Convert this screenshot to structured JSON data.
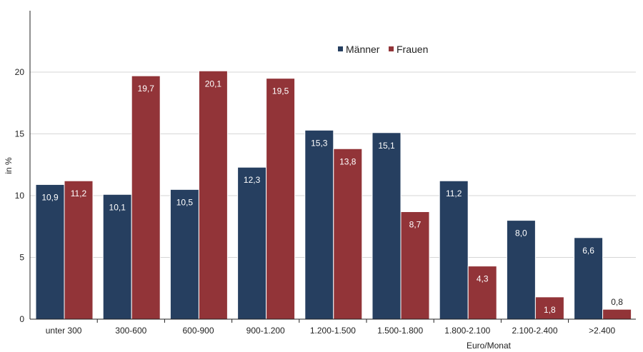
{
  "chart_data": {
    "type": "bar",
    "categories": [
      "unter 300",
      "300-600",
      "600-900",
      "900-1.200",
      "1.200-1.500",
      "1.500-1.800",
      "1.800-2.100",
      "2.100-2.400",
      ">2.400"
    ],
    "series": [
      {
        "name": "Männer",
        "color": "#263f60",
        "values": [
          10.9,
          10.1,
          10.5,
          12.3,
          15.3,
          15.1,
          11.2,
          8.0,
          6.6
        ],
        "labels": [
          "10,9",
          "10,1",
          "10,5",
          "12,3",
          "15,3",
          "15,1",
          "11,2",
          "8,0",
          "6,6"
        ]
      },
      {
        "name": "Frauen",
        "color": "#923438",
        "values": [
          11.2,
          19.7,
          20.1,
          19.5,
          13.8,
          8.7,
          4.3,
          1.8,
          0.8
        ],
        "labels": [
          "11,2",
          "19,7",
          "20,1",
          "19,5",
          "13,8",
          "8,7",
          "4,3",
          "1,8",
          "0,8"
        ]
      }
    ],
    "title": "",
    "xlabel": "Euro/Monat",
    "ylabel": "in %",
    "ylim": [
      0,
      25
    ],
    "yticks": [
      0,
      5,
      10,
      15,
      20
    ],
    "grid": true,
    "legend": "top-center"
  }
}
